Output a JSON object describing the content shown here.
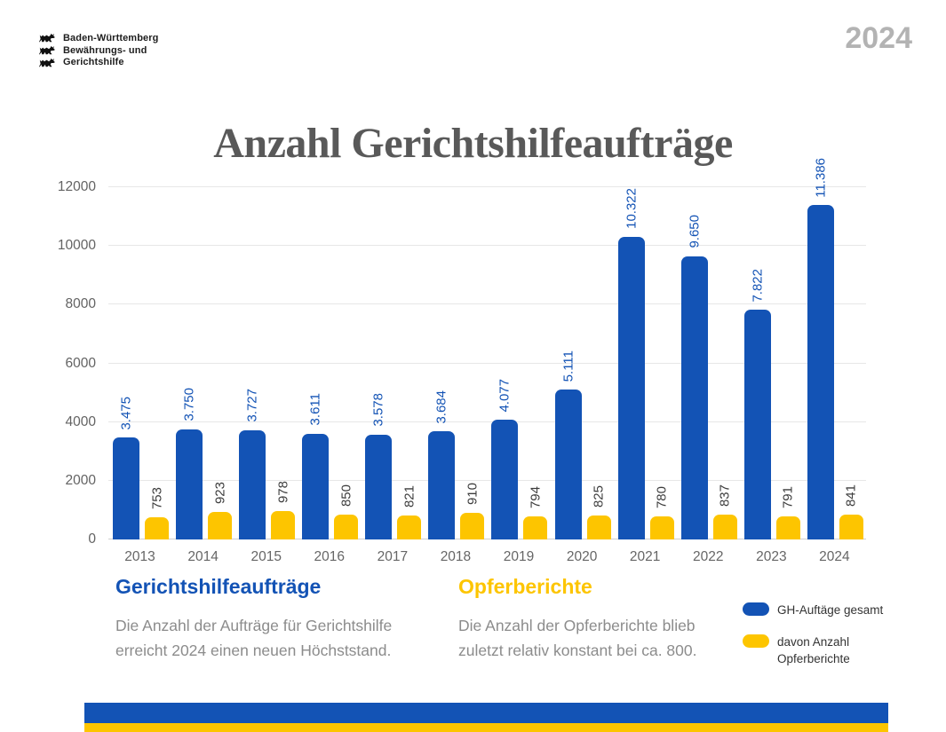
{
  "logo": {
    "line1": "Baden-Württemberg",
    "line2": "Bewährungs- und",
    "line3": "Gerichtshilfe"
  },
  "header": {
    "year_badge": "2024",
    "title": "Anzahl Gerichtshilfeaufträge"
  },
  "chart_data": {
    "type": "bar",
    "title": "Anzahl Gerichtshilfeaufträge",
    "categories": [
      "2013",
      "2014",
      "2015",
      "2016",
      "2017",
      "2018",
      "2019",
      "2020",
      "2021",
      "2022",
      "2023",
      "2024"
    ],
    "series": [
      {
        "name": "GH-Auftäge gesamt",
        "color": "#1353B5",
        "values": [
          3475,
          3750,
          3727,
          3611,
          3578,
          3684,
          4077,
          5111,
          10322,
          9650,
          7822,
          11386
        ],
        "labels": [
          "3.475",
          "3.750",
          "3.727",
          "3.611",
          "3.578",
          "3.684",
          "4.077",
          "5.111",
          "10.322",
          "9.650",
          "7.822",
          "11.386"
        ]
      },
      {
        "name": "davon Anzahl Opferberichte",
        "color": "#FDC500",
        "values": [
          753,
          923,
          978,
          850,
          821,
          910,
          794,
          825,
          780,
          837,
          791,
          841
        ],
        "labels": [
          "753",
          "923",
          "978",
          "850",
          "821",
          "910",
          "794",
          "825",
          "780",
          "837",
          "791",
          "841"
        ]
      }
    ],
    "ylim": [
      0,
      12000
    ],
    "yticks": [
      0,
      2000,
      4000,
      6000,
      8000,
      10000,
      12000
    ],
    "grid": true,
    "legend_position": "bottom-right"
  },
  "captions": {
    "left": {
      "heading": "Gerichtshilfeaufträge",
      "body": "Die Anzahl der Aufträge für Gerichtshilfe erreicht 2024 einen neuen Höchststand."
    },
    "right": {
      "heading": "Opferberichte",
      "body": "Die Anzahl der Opferberichte blieb zuletzt relativ konstant bei ca. 800."
    }
  },
  "legend": {
    "items": [
      {
        "label": "GH-Auftäge gesamt",
        "color": "#1353B5"
      },
      {
        "label": "davon Anzahl Opferberichte",
        "color": "#FDC500"
      }
    ]
  },
  "colors": {
    "blue": "#1353B5",
    "yellow": "#FDC500",
    "value_label_dark": "#3d3d3d",
    "title_gray": "#595959",
    "year_gray": "#b3b3b3",
    "grid": "#e7e7e7"
  }
}
